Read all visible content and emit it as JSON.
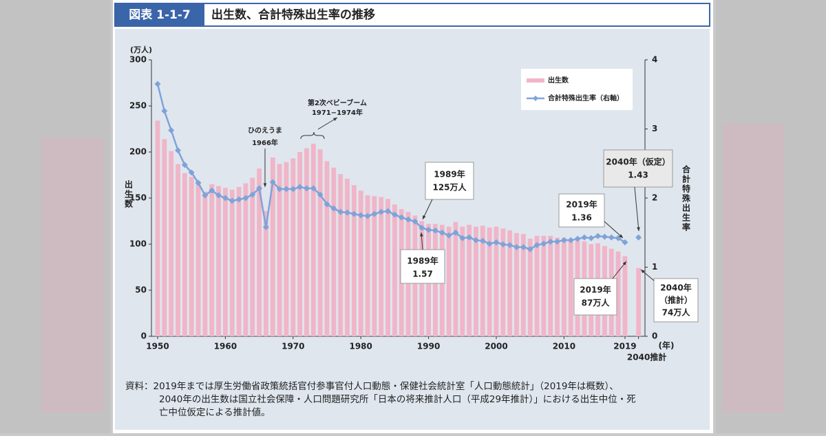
{
  "header": {
    "label": "図表 1-1-7",
    "title": "出生数、合計特殊出生率の推移"
  },
  "chart_data": {
    "type": "bar",
    "y_label_unit": "(万人)",
    "y_label": "出生数",
    "y2_label": "合計特殊出生率",
    "x_label": "(年)",
    "categories": [
      "1950",
      null,
      null,
      null,
      null,
      null,
      null,
      null,
      null,
      null,
      "1960",
      null,
      null,
      null,
      null,
      null,
      null,
      null,
      null,
      null,
      "1970",
      null,
      null,
      null,
      null,
      null,
      null,
      null,
      null,
      null,
      "1980",
      null,
      null,
      null,
      null,
      null,
      null,
      null,
      null,
      null,
      "1990",
      null,
      null,
      null,
      null,
      null,
      null,
      null,
      null,
      null,
      "2000",
      null,
      null,
      null,
      null,
      null,
      null,
      null,
      null,
      null,
      "2010",
      null,
      null,
      null,
      null,
      null,
      null,
      null,
      null,
      "2019",
      null,
      "2040推計"
    ],
    "series": [
      {
        "name": "出生数",
        "type": "bar",
        "color": "#f1b5c8",
        "values": [
          234,
          214,
          201,
          187,
          177,
          173,
          167,
          157,
          165,
          163,
          161,
          159,
          162,
          166,
          172,
          182,
          136,
          194,
          187,
          189,
          193,
          200,
          204,
          209,
          203,
          190,
          183,
          176,
          171,
          164,
          158,
          153,
          152,
          151,
          149,
          143,
          138,
          135,
          131,
          125,
          122,
          122,
          121,
          119,
          124,
          119,
          121,
          119,
          120,
          118,
          119,
          117,
          115,
          112,
          111,
          106,
          109,
          109,
          109,
          107,
          107,
          105,
          104,
          103,
          100,
          101,
          98,
          95,
          92,
          87,
          null,
          74
        ]
      },
      {
        "name": "合計特殊出生率（右軸）",
        "type": "line",
        "axis": "y2",
        "color": "#7fa3d8",
        "values": [
          3.65,
          3.26,
          2.98,
          2.69,
          2.48,
          2.37,
          2.22,
          2.04,
          2.11,
          2.04,
          2.0,
          1.96,
          1.98,
          2.0,
          2.05,
          2.14,
          1.58,
          2.23,
          2.13,
          2.13,
          2.13,
          2.16,
          2.14,
          2.14,
          2.05,
          1.91,
          1.85,
          1.8,
          1.79,
          1.77,
          1.75,
          1.74,
          1.77,
          1.8,
          1.81,
          1.76,
          1.72,
          1.69,
          1.66,
          1.57,
          1.54,
          1.53,
          1.5,
          1.46,
          1.5,
          1.42,
          1.43,
          1.39,
          1.38,
          1.34,
          1.36,
          1.33,
          1.32,
          1.29,
          1.29,
          1.26,
          1.32,
          1.34,
          1.37,
          1.37,
          1.39,
          1.39,
          1.41,
          1.43,
          1.42,
          1.45,
          1.44,
          1.43,
          1.42,
          1.36,
          null,
          1.43
        ]
      }
    ],
    "ylim": [
      0,
      300
    ],
    "yticks": [
      0,
      50,
      100,
      150,
      200,
      250,
      300
    ],
    "y2lim": [
      0,
      4
    ],
    "y2ticks": [
      0,
      1,
      2,
      3,
      4
    ],
    "legend": "upper right",
    "grid": false,
    "annotations": [
      {
        "lines": [
          "ひのえうま",
          "1966年"
        ]
      },
      {
        "lines": [
          "第2次ベビーブーム",
          "1971−1974年"
        ]
      },
      {
        "lines": [
          "1989年",
          "125万人"
        ]
      },
      {
        "lines": [
          "1989年",
          "1.57"
        ]
      },
      {
        "lines": [
          "2019年",
          "1.36"
        ]
      },
      {
        "lines": [
          "2019年",
          "87万人"
        ]
      },
      {
        "lines": [
          "2040年（仮定）",
          "1.43"
        ]
      },
      {
        "lines": [
          "2040年",
          "（推計）",
          "74万人"
        ]
      }
    ]
  },
  "source": {
    "lines": [
      "資料：2019年までは厚生労働省政策統括官付参事官付人口動態・保健社会統計室「人口動態統計」（2019年は概数）、",
      "2040年の出生数は国立社会保障・人口問題研究所「日本の将来推計人口（平成29年推計）」における出生中位・死",
      "亡中位仮定による推計値。"
    ]
  }
}
